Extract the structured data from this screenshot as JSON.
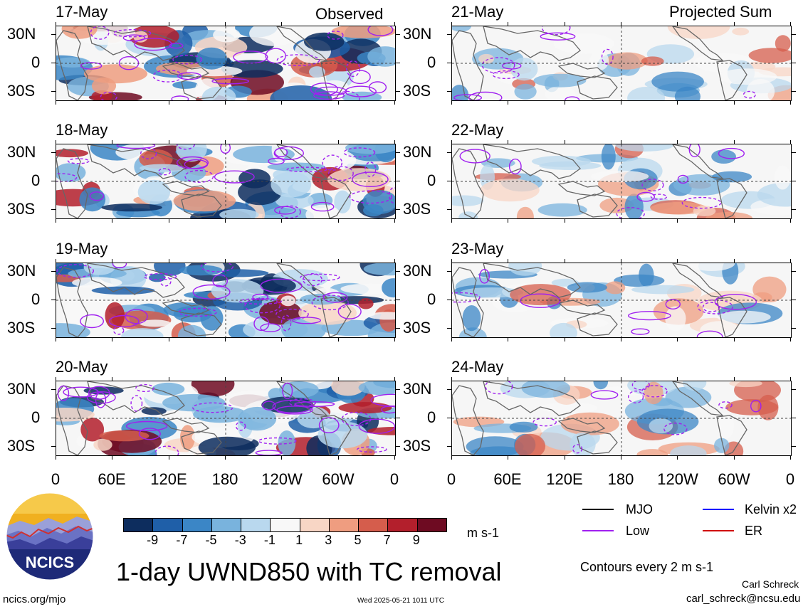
{
  "columns": {
    "left_title": "Observed",
    "right_title": "Projected Sum"
  },
  "left_dates": [
    "17-May",
    "18-May",
    "19-May",
    "20-May"
  ],
  "right_dates": [
    "21-May",
    "22-May",
    "23-May",
    "24-May"
  ],
  "lat_labels": [
    "30N",
    "0",
    "30S"
  ],
  "lon_labels": [
    "0",
    "60E",
    "120E",
    "180",
    "120W",
    "60W",
    "0"
  ],
  "colorbar": {
    "labels": [
      "-9",
      "-7",
      "-5",
      "-3",
      "-1",
      "1",
      "3",
      "5",
      "7",
      "9"
    ],
    "colors": [
      "#0d2d5e",
      "#1f5fa8",
      "#3b86c6",
      "#79b3dd",
      "#b9d8ee",
      "#f8f8f8",
      "#f8d6c5",
      "#ef9d80",
      "#d55d4c",
      "#b31f2c",
      "#6e0b22"
    ],
    "units": "m s-1"
  },
  "legend": [
    {
      "label": "MJO",
      "color": "#000000"
    },
    {
      "label": "Kelvin x2",
      "color": "#0000ff"
    },
    {
      "label": "Low",
      "color": "#a020f0"
    },
    {
      "label": "ER",
      "color": "#d00000"
    }
  ],
  "contour_note": "Contours every 2 m s-1",
  "logo_text": "NCICS",
  "title": "1-day UWND850 with TC removal",
  "author": "Carl Schreck",
  "email": "carl_schreck@ncsu.edu",
  "website": "ncics.org/mjo",
  "timestamp": "Wed 2025-05-21 1011 UTC"
}
